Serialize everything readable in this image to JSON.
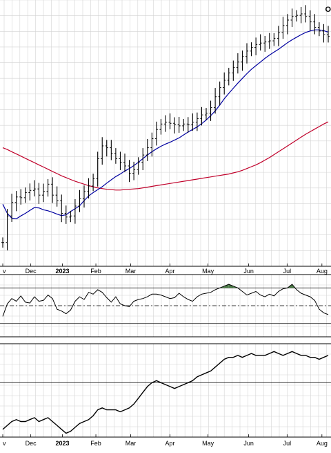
{
  "header": {
    "corner_text": "O"
  },
  "chart_data": [
    {
      "type": "line",
      "panel": "price",
      "subtype": "ohlc-bars with moving averages",
      "x_labels": [
        "v",
        "Dec",
        "2023",
        "Feb",
        "Mar",
        "Apr",
        "May",
        "Jun",
        "Jul",
        "Aug"
      ],
      "x_label_weeks": [
        0.0,
        6.2,
        13.2,
        20.6,
        28.3,
        37.0,
        45.4,
        54.4,
        62.9,
        70.6
      ],
      "weeks": [
        0,
        1,
        2,
        3,
        4,
        5,
        6,
        7,
        8,
        9,
        10,
        11,
        12,
        13,
        14,
        15,
        16,
        17,
        18,
        19,
        20,
        21,
        22,
        23,
        24,
        25,
        26,
        27,
        28,
        29,
        30,
        31,
        32,
        33,
        34,
        35,
        36,
        37,
        38,
        39,
        40,
        41,
        42,
        43,
        44,
        45,
        46,
        47,
        48,
        49,
        50,
        51,
        52,
        53,
        54,
        55,
        56,
        57,
        58,
        59,
        60,
        61,
        62,
        63,
        64,
        65,
        66,
        67,
        68,
        69,
        70,
        71,
        72
      ],
      "series": [
        {
          "color": "#000000",
          "values": [
            20.5,
            27.8,
            31.5,
            33.0,
            32.8,
            34.2,
            34.8,
            35.2,
            33.5,
            34.5,
            36.5,
            33.5,
            32.0,
            28.5,
            27.5,
            27.8,
            30.5,
            32.5,
            34.5,
            36.0,
            38.0,
            43.5,
            47.0,
            46.5,
            45.0,
            43.5,
            42.5,
            41.5,
            39.5,
            40.5,
            42.5,
            44.5,
            46.5,
            49.0,
            51.5,
            53.0,
            53.5,
            53.2,
            52.8,
            52.5,
            53.0,
            52.8,
            53.5,
            54.5,
            55.5,
            56.0,
            57.5,
            60.5,
            63.0,
            65.0,
            67.0,
            68.5,
            70.0,
            71.5,
            73.0,
            74.0,
            74.8,
            75.2,
            75.5,
            75.8,
            76.5,
            78.0,
            80.0,
            81.5,
            82.5,
            82.8,
            83.2,
            82.5,
            81.0,
            79.5,
            78.5,
            77.5,
            77.0
          ]
        },
        {
          "color": "#0000a0",
          "values": [
            31.0,
            28.5,
            27.2,
            27.0,
            27.8,
            28.5,
            29.3,
            30.1,
            30.0,
            29.5,
            29.2,
            28.8,
            28.3,
            27.9,
            28.1,
            29.0,
            29.8,
            30.6,
            32.0,
            33.3,
            34.2,
            35.0,
            35.8,
            36.8,
            37.7,
            38.6,
            39.3,
            40.1,
            40.8,
            41.6,
            42.5,
            43.5,
            44.5,
            45.4,
            46.2,
            46.9,
            47.5,
            48.0,
            48.6,
            49.2,
            50.0,
            50.8,
            51.5,
            52.2,
            53.1,
            54.1,
            55.3,
            56.6,
            58.2,
            59.9,
            61.4,
            62.8,
            64.2,
            65.5,
            66.8,
            68.0,
            69.0,
            70.0,
            71.0,
            71.9,
            72.7,
            73.5,
            74.4,
            75.3,
            76.1,
            76.8,
            77.5,
            78.1,
            78.5,
            78.8,
            78.8,
            78.6,
            78.2
          ]
        },
        {
          "color": "#c0002a",
          "values": [
            46.5,
            46.0,
            45.4,
            44.8,
            44.2,
            43.6,
            43.0,
            42.4,
            41.8,
            41.2,
            40.6,
            40.0,
            39.4,
            38.8,
            38.3,
            37.8,
            37.3,
            36.9,
            36.5,
            36.1,
            35.8,
            35.5,
            35.3,
            35.1,
            35.0,
            34.9,
            34.9,
            35.0,
            35.1,
            35.2,
            35.3,
            35.5,
            35.7,
            35.9,
            36.1,
            36.3,
            36.5,
            36.7,
            36.9,
            37.1,
            37.3,
            37.5,
            37.7,
            37.9,
            38.1,
            38.3,
            38.5,
            38.7,
            38.9,
            39.1,
            39.3,
            39.6,
            39.9,
            40.3,
            40.8,
            41.3,
            41.8,
            42.4,
            43.1,
            43.8,
            44.6,
            45.4,
            46.2,
            47.0,
            47.8,
            48.6,
            49.4,
            50.2,
            50.9,
            51.6,
            52.3,
            53.0,
            53.6
          ]
        }
      ]
    },
    {
      "type": "line",
      "panel": "oscillator-1",
      "upper_level": 70,
      "mid_level": 50,
      "lower_level": 30,
      "ylim": [
        15,
        85
      ],
      "overbought_fill": "#4a7a46",
      "x_labels": [],
      "weeks": [
        0,
        1,
        2,
        3,
        4,
        5,
        6,
        7,
        8,
        9,
        10,
        11,
        12,
        13,
        14,
        15,
        16,
        17,
        18,
        19,
        20,
        21,
        22,
        23,
        24,
        25,
        26,
        27,
        28,
        29,
        30,
        31,
        32,
        33,
        34,
        35,
        36,
        37,
        38,
        39,
        40,
        41,
        42,
        43,
        44,
        45,
        46,
        47,
        48,
        49,
        50,
        51,
        52,
        53,
        54,
        55,
        56,
        57,
        58,
        59,
        60,
        61,
        62,
        63,
        64,
        65,
        66,
        67,
        68,
        69,
        70,
        71,
        72
      ],
      "series": [
        {
          "color": "#000000",
          "values": [
            38,
            52,
            58,
            55,
            61,
            54,
            53,
            60,
            55,
            56,
            62,
            58,
            46,
            44,
            41,
            45,
            55,
            60,
            57,
            65,
            63,
            68,
            65,
            59,
            54,
            60,
            52,
            50,
            49,
            55,
            57,
            58,
            60,
            63,
            63,
            62,
            60,
            58,
            59,
            64,
            60,
            57,
            55,
            60,
            63,
            64,
            65,
            68,
            70,
            72,
            74,
            72,
            70,
            66,
            62,
            64,
            66,
            62,
            60,
            63,
            61,
            66,
            69,
            70,
            74,
            68,
            64,
            62,
            60,
            56,
            46,
            42,
            40
          ]
        }
      ]
    },
    {
      "type": "line",
      "panel": "relative-strength",
      "reference_level": 1.0,
      "ylim": [
        0.72,
        1.2
      ],
      "x_labels": [
        "v",
        "Dec",
        "2023",
        "Feb",
        "Mar",
        "Apr",
        "May",
        "Jun",
        "Jul",
        "Aug"
      ],
      "x_label_weeks": [
        0.0,
        6.2,
        13.2,
        20.6,
        28.3,
        37.0,
        45.4,
        54.4,
        62.9,
        70.6
      ],
      "weeks": [
        0,
        1,
        2,
        3,
        4,
        5,
        6,
        7,
        8,
        9,
        10,
        11,
        12,
        13,
        14,
        15,
        16,
        17,
        18,
        19,
        20,
        21,
        22,
        23,
        24,
        25,
        26,
        27,
        28,
        29,
        30,
        31,
        32,
        33,
        34,
        35,
        36,
        37,
        38,
        39,
        40,
        41,
        42,
        43,
        44,
        45,
        46,
        47,
        48,
        49,
        50,
        51,
        52,
        53,
        54,
        55,
        56,
        57,
        58,
        59,
        60,
        61,
        62,
        63,
        64,
        65,
        66,
        67,
        68,
        69,
        70,
        71,
        72
      ],
      "series": [
        {
          "color": "#000000",
          "values": [
            0.76,
            0.78,
            0.8,
            0.81,
            0.8,
            0.8,
            0.81,
            0.82,
            0.8,
            0.81,
            0.82,
            0.8,
            0.78,
            0.76,
            0.74,
            0.75,
            0.77,
            0.79,
            0.8,
            0.81,
            0.83,
            0.86,
            0.87,
            0.86,
            0.86,
            0.86,
            0.85,
            0.86,
            0.87,
            0.89,
            0.92,
            0.95,
            0.98,
            1.0,
            1.01,
            1.0,
            0.99,
            0.98,
            0.97,
            0.98,
            0.99,
            1.0,
            1.01,
            1.03,
            1.04,
            1.05,
            1.06,
            1.08,
            1.1,
            1.12,
            1.13,
            1.13,
            1.14,
            1.13,
            1.14,
            1.15,
            1.14,
            1.14,
            1.14,
            1.15,
            1.16,
            1.15,
            1.14,
            1.15,
            1.16,
            1.15,
            1.14,
            1.14,
            1.13,
            1.13,
            1.12,
            1.13,
            1.14
          ]
        }
      ]
    }
  ]
}
